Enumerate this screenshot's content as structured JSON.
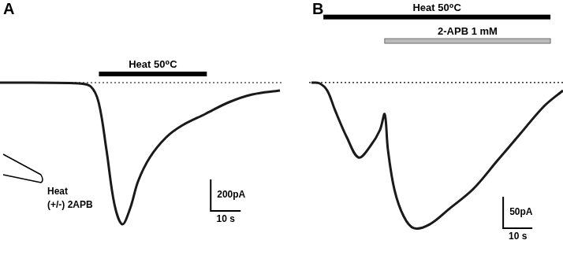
{
  "chart_data": [
    {
      "type": "line",
      "panel": "A",
      "color": "#1a1a1a",
      "grid": false,
      "tick_labels": false,
      "x": [
        0,
        26.3,
        30.3,
        32.9,
        35.5,
        38.2,
        40.8,
        43.4,
        46.1,
        50,
        55.3,
        60.5,
        68.4,
        76.3,
        84.2,
        93.4
      ],
      "values": [
        0,
        -5,
        -25,
        -125,
        -425,
        -775,
        -900,
        -800,
        -625,
        -475,
        -350,
        -275,
        -200,
        -125,
        -75,
        -50
      ],
      "xlim": [
        0,
        94.7
      ],
      "ylim": [
        -1165,
        525
      ],
      "baseline": {
        "value": 0,
        "line_style": "dotted"
      },
      "annotations": [
        {
          "text": "Heat 50⁰C",
          "x": [
            33,
            69
          ],
          "y": 55,
          "color": "#000000"
        }
      ],
      "scale_bar": {
        "x": [
          70.3,
          80.3
        ],
        "y": [
          -815,
          -615
        ],
        "x_label": "10 s",
        "y_label": "200pA"
      },
      "inset_labels": [
        "Heat",
        "(+/-) 2APB"
      ]
    },
    {
      "type": "line",
      "panel": "B",
      "color": "#1a1a1a",
      "grid": false,
      "tick_labels": false,
      "x": [
        0,
        2.7,
        5.4,
        8.1,
        12.2,
        16.2,
        20.3,
        23.5,
        25.1,
        26.2,
        28.4,
        31.6,
        35.1,
        40.5,
        47.3,
        55.4,
        63.5,
        71.6,
        79.7,
        86.2
      ],
      "values": [
        0,
        -1,
        -12.5,
        -44,
        -87.5,
        -119,
        -100,
        -75,
        -50,
        -106,
        -169,
        -212,
        -231,
        -225,
        -200,
        -169,
        -125,
        -81,
        -37.5,
        -12.5
      ],
      "xlim": [
        -0.8,
        86.2
      ],
      "ylim": [
        -291,
        131
      ],
      "baseline": {
        "value": 0,
        "line_style": "dotted"
      },
      "annotations": [
        {
          "text": "Heat 50⁰C",
          "x": [
            4.1,
            81.9
          ],
          "y": 104,
          "color": "#000000"
        },
        {
          "text": "2-APB 1 mM",
          "x": [
            25.1,
            81.9
          ],
          "y": 66,
          "color": "#bbbbbb"
        }
      ],
      "scale_bar": {
        "x": [
          65.7,
          75.7
        ],
        "y": [
          -231,
          -181
        ],
        "x_label": "10 s",
        "y_label": "50pA"
      }
    }
  ]
}
